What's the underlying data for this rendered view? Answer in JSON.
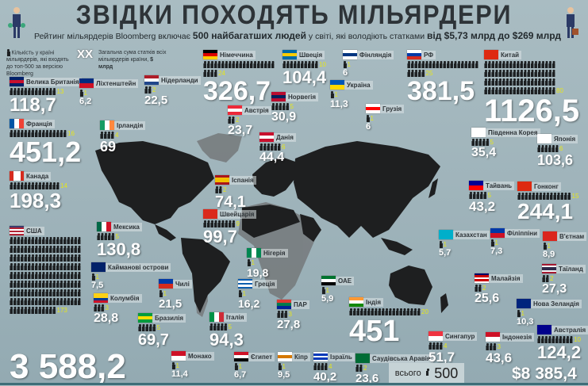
{
  "title": "ЗВІДКИ ПОХОДЯТЬ МІЛЬЯРДЕРИ",
  "subtitle": {
    "part1": "Рейтинг мільярдерів Bloomberg включає ",
    "bold1": "500 найбагатших людей",
    "part2": " у світі, які володіють статками ",
    "bold2": "від $5,73 млрд до $269 млрд"
  },
  "legend": {
    "count_text": "Кількість у країні мільярдерів, які входять до топ-500 за версією Bloomberg",
    "sum_marker": "XX",
    "sum_text": "Загальна сума статків всіх мільярдерів країни, ",
    "sum_unit": "$ млрд"
  },
  "colors": {
    "count": "#e6e61a",
    "value": "#ffffff",
    "land": "#1e1f20",
    "land_secondary": "#6f7678"
  },
  "countries": [
    {
      "id": "uk",
      "name": "Велика Британія",
      "count": 13,
      "total": "118,7",
      "flag": {
        "dir": "h",
        "colors": [
          "#012169",
          "#c8102e",
          "#012169"
        ]
      }
    },
    {
      "id": "li",
      "name": "Ліхтенштейн",
      "count": 1,
      "total": "6,2",
      "flag": {
        "dir": "h",
        "colors": [
          "#002b7f",
          "#ce1126"
        ]
      }
    },
    {
      "id": "nl",
      "name": "Нідерланди",
      "count": 2,
      "total": "22,5",
      "flag": {
        "dir": "h",
        "colors": [
          "#ae1c28",
          "#ffffff",
          "#21468b"
        ]
      }
    },
    {
      "id": "de",
      "name": "Німеччина",
      "count": 24,
      "total": "326,7",
      "flag": {
        "dir": "h",
        "colors": [
          "#000000",
          "#dd0000",
          "#ffce00"
        ]
      }
    },
    {
      "id": "se",
      "name": "Швеція",
      "count": 10,
      "total": "104,4",
      "flag": {
        "dir": "h",
        "colors": [
          "#006aa7",
          "#fecc00",
          "#006aa7"
        ]
      }
    },
    {
      "id": "fi",
      "name": "Фінляндія",
      "count": 1,
      "total": "6",
      "flag": {
        "dir": "h",
        "colors": [
          "#ffffff",
          "#003580",
          "#ffffff"
        ]
      }
    },
    {
      "id": "ru",
      "name": "РФ",
      "count": 25,
      "total": "381,5",
      "flag": {
        "dir": "h",
        "colors": [
          "#ffffff",
          "#0039a6",
          "#d52b1e"
        ]
      }
    },
    {
      "id": "cn",
      "name": "Китай",
      "count": 80,
      "total": "1126,5",
      "flag": {
        "dir": "h",
        "colors": [
          "#de2910"
        ]
      }
    },
    {
      "id": "no",
      "name": "Норвегія",
      "count": 5,
      "total": "30,9",
      "flag": {
        "dir": "h",
        "colors": [
          "#ba0c2f",
          "#00205b",
          "#ba0c2f"
        ]
      }
    },
    {
      "id": "at",
      "name": "Австрія",
      "count": 2,
      "total": "23,7",
      "flag": {
        "dir": "h",
        "colors": [
          "#ed2939",
          "#ffffff",
          "#ed2939"
        ]
      }
    },
    {
      "id": "ua",
      "name": "Україна",
      "count": 1,
      "total": "11,3",
      "flag": {
        "dir": "h",
        "colors": [
          "#0057b7",
          "#ffd700"
        ]
      }
    },
    {
      "id": "ge",
      "name": "Грузія",
      "count": 1,
      "total": "6",
      "flag": {
        "dir": "h",
        "colors": [
          "#ffffff",
          "#ff0000",
          "#ffffff"
        ]
      }
    },
    {
      "id": "fr",
      "name": "Франція",
      "count": 16,
      "total": "451,2",
      "flag": {
        "dir": "v",
        "colors": [
          "#0055a4",
          "#ffffff",
          "#ef4135"
        ]
      }
    },
    {
      "id": "ie",
      "name": "Ірландія",
      "count": 4,
      "total": "69",
      "flag": {
        "dir": "v",
        "colors": [
          "#169b62",
          "#ffffff",
          "#ff883e"
        ]
      }
    },
    {
      "id": "dk",
      "name": "Данія",
      "count": 6,
      "total": "44,4",
      "flag": {
        "dir": "h",
        "colors": [
          "#c8102e",
          "#ffffff",
          "#c8102e"
        ]
      }
    },
    {
      "id": "ca",
      "name": "Канада",
      "count": 14,
      "total": "198,3",
      "flag": {
        "dir": "v",
        "colors": [
          "#d52b1e",
          "#ffffff",
          "#ffffff",
          "#d52b1e"
        ]
      }
    },
    {
      "id": "es",
      "name": "Іспанія",
      "count": 2,
      "total": "74,1",
      "flag": {
        "dir": "h",
        "colors": [
          "#aa151b",
          "#f1bf00",
          "#f1bf00",
          "#aa151b"
        ]
      }
    },
    {
      "id": "ch",
      "name": "Швейцарія",
      "count": 9,
      "total": "99,7",
      "flag": {
        "dir": "h",
        "colors": [
          "#da291c"
        ]
      }
    },
    {
      "id": "kr",
      "name": "Південна Корея",
      "count": 5,
      "total": "35,4",
      "flag": {
        "dir": "h",
        "colors": [
          "#ffffff"
        ]
      }
    },
    {
      "id": "jp",
      "name": "Японія",
      "count": 6,
      "total": "103,6",
      "flag": {
        "dir": "h",
        "colors": [
          "#ffffff"
        ]
      }
    },
    {
      "id": "tw",
      "name": "Тайвань",
      "count": 5,
      "total": "43,2",
      "flag": {
        "dir": "h",
        "colors": [
          "#000095",
          "#fe0000"
        ]
      }
    },
    {
      "id": "hk",
      "name": "Гонконг",
      "count": 15,
      "total": "244,1",
      "flag": {
        "dir": "h",
        "colors": [
          "#de2910"
        ]
      }
    },
    {
      "id": "us",
      "name": "США",
      "count": 173,
      "total": "3 588,2",
      "flag": {
        "dir": "h",
        "colors": [
          "#3c3b6e",
          "#b22234",
          "#ffffff",
          "#b22234",
          "#ffffff",
          "#b22234"
        ]
      }
    },
    {
      "id": "mx",
      "name": "Мексика",
      "count": 5,
      "total": "130,8",
      "flag": {
        "dir": "v",
        "colors": [
          "#006847",
          "#ffffff",
          "#ce1126"
        ]
      }
    },
    {
      "id": "ky",
      "name": "Кайманові острови",
      "count": 1,
      "total": "7,5",
      "flag": {
        "dir": "h",
        "colors": [
          "#012169"
        ]
      }
    },
    {
      "id": "co",
      "name": "Колумбія",
      "count": 3,
      "total": "28,8",
      "flag": {
        "dir": "h",
        "colors": [
          "#fcd116",
          "#fcd116",
          "#003893",
          "#ce1126"
        ]
      }
    },
    {
      "id": "cl",
      "name": "Чилі",
      "count": 1,
      "total": "21,5",
      "flag": {
        "dir": "h",
        "colors": [
          "#0039a6",
          "#d52b1e"
        ]
      }
    },
    {
      "id": "br",
      "name": "Бразилія",
      "count": 5,
      "total": "69,7",
      "flag": {
        "dir": "h",
        "colors": [
          "#009c3b",
          "#ffdf00",
          "#009c3b"
        ]
      }
    },
    {
      "id": "ng",
      "name": "Нігерія",
      "count": 1,
      "total": "19,8",
      "flag": {
        "dir": "v",
        "colors": [
          "#008751",
          "#ffffff",
          "#008751"
        ]
      }
    },
    {
      "id": "gr",
      "name": "Греція",
      "count": 1,
      "total": "16,2",
      "flag": {
        "dir": "h",
        "colors": [
          "#0d5eaf",
          "#ffffff",
          "#0d5eaf",
          "#ffffff",
          "#0d5eaf"
        ]
      }
    },
    {
      "id": "it",
      "name": "Італія",
      "count": 5,
      "total": "94,3",
      "flag": {
        "dir": "v",
        "colors": [
          "#009246",
          "#ffffff",
          "#ce2b37"
        ]
      }
    },
    {
      "id": "za",
      "name": "ПАР",
      "count": 3,
      "total": "27,8",
      "flag": {
        "dir": "h",
        "colors": [
          "#de3831",
          "#007a4d",
          "#002395"
        ]
      }
    },
    {
      "id": "mc",
      "name": "Монако",
      "count": 1,
      "total": "11,4",
      "flag": {
        "dir": "h",
        "colors": [
          "#ce1126",
          "#ffffff"
        ]
      }
    },
    {
      "id": "eg",
      "name": "Єгипет",
      "count": 1,
      "total": "6,7",
      "flag": {
        "dir": "h",
        "colors": [
          "#ce1126",
          "#ffffff",
          "#000000"
        ]
      }
    },
    {
      "id": "cy",
      "name": "Кіпр",
      "count": 1,
      "total": "9,5",
      "flag": {
        "dir": "h",
        "colors": [
          "#ffffff",
          "#d57800",
          "#ffffff"
        ]
      }
    },
    {
      "id": "il",
      "name": "Ізраїль",
      "count": 4,
      "total": "40,2",
      "flag": {
        "dir": "h",
        "colors": [
          "#ffffff",
          "#0038b8",
          "#ffffff",
          "#0038b8",
          "#ffffff"
        ]
      }
    },
    {
      "id": "sa",
      "name": "Саудівська Аравія",
      "count": 2,
      "total": "23,6",
      "flag": {
        "dir": "h",
        "colors": [
          "#006c35"
        ]
      }
    },
    {
      "id": "ae",
      "name": "ОАЕ",
      "count": 1,
      "total": "5,9",
      "flag": {
        "dir": "h",
        "colors": [
          "#00732f",
          "#ffffff",
          "#000000"
        ]
      }
    },
    {
      "id": "in",
      "name": "Індія",
      "count": 20,
      "total": "451",
      "flag": {
        "dir": "h",
        "colors": [
          "#ff9933",
          "#ffffff",
          "#138808"
        ]
      }
    },
    {
      "id": "sg",
      "name": "Сингапур",
      "count": 4,
      "total": "51,7",
      "flag": {
        "dir": "h",
        "colors": [
          "#ef3340",
          "#ffffff"
        ]
      }
    },
    {
      "id": "id",
      "name": "Індонезія",
      "count": 3,
      "total": "43,6",
      "flag": {
        "dir": "h",
        "colors": [
          "#ce1126",
          "#ffffff"
        ]
      }
    },
    {
      "id": "kz",
      "name": "Казахстан",
      "count": 1,
      "total": "5,7",
      "flag": {
        "dir": "h",
        "colors": [
          "#00afca"
        ]
      }
    },
    {
      "id": "ph",
      "name": "Філіппіни",
      "count": 1,
      "total": "7,3",
      "flag": {
        "dir": "h",
        "colors": [
          "#0038a8",
          "#ce1126"
        ]
      }
    },
    {
      "id": "vn",
      "name": "В'єтнам",
      "count": 1,
      "total": "8,9",
      "flag": {
        "dir": "h",
        "colors": [
          "#da251d"
        ]
      }
    },
    {
      "id": "th",
      "name": "Таїланд",
      "count": 2,
      "total": "27,3",
      "flag": {
        "dir": "h",
        "colors": [
          "#a51931",
          "#f4f5f8",
          "#2d2a4a",
          "#2d2a4a",
          "#f4f5f8",
          "#a51931"
        ]
      }
    },
    {
      "id": "my",
      "name": "Малайзія",
      "count": 2,
      "total": "25,6",
      "flag": {
        "dir": "h",
        "colors": [
          "#010066",
          "#cc0001",
          "#ffffff",
          "#cc0001",
          "#ffffff"
        ]
      }
    },
    {
      "id": "nz",
      "name": "Нова Зеландія",
      "count": 1,
      "total": "10,3",
      "flag": {
        "dir": "h",
        "colors": [
          "#00247d"
        ]
      }
    },
    {
      "id": "au",
      "name": "Австралія",
      "count": 10,
      "total": "124,2",
      "flag": {
        "dir": "h",
        "colors": [
          "#00008b"
        ]
      }
    }
  ],
  "footer": {
    "total_label": "всього",
    "total_count": "500",
    "total_sum": "$8 385,4"
  }
}
